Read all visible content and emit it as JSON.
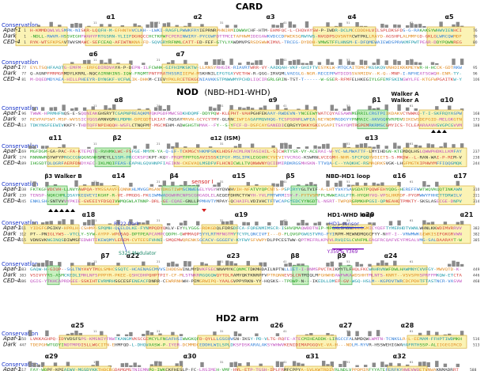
{
  "sections": {
    "card": "CARD",
    "nod": "NOD",
    "nod_sub": "(NBD-HD1-WHD)",
    "hd2": "HD2 arm"
  },
  "row_labels": {
    "conservation": "Conservation",
    "seqs": [
      "Apaf-1",
      "Dark",
      "CED-4"
    ]
  },
  "blocks": [
    {
      "id": "b1",
      "section": "card",
      "nseq": 3,
      "helices": [
        "α1",
        "α2",
        "α3",
        "α4",
        "α5"
      ],
      "start": [
        "1",
        "1",
        "1"
      ],
      "end": [
        "76",
        "76",
        "80"
      ]
    },
    {
      "id": "b2",
      "section": "card",
      "nseq": 3,
      "helices": [
        "α6",
        "α7"
      ],
      "start": [
        "77",
        "77",
        "81"
      ],
      "end": [
        "95",
        "96",
        "106"
      ]
    },
    {
      "id": "b3",
      "section": "nod",
      "nseq": 3,
      "helices": [
        "α8",
        "α9",
        "β1",
        "Walker A",
        "α10"
      ],
      "start": [
        "96",
        "97",
        "113"
      ],
      "end": [
        "168",
        "173",
        "188"
      ]
    },
    {
      "id": "b4",
      "section": "nod",
      "nseq": 3,
      "helices": [
        "α11",
        "β2",
        "α12 (ISM)",
        "α13"
      ],
      "start": [
        "169",
        "174",
        "189"
      ],
      "end": [
        "237",
        "238",
        "244"
      ]
    },
    {
      "id": "b5",
      "section": "nod",
      "nseq": 3,
      "helices": [
        "β3 Walker B",
        "α14",
        "β4",
        "α15",
        "β5",
        "NBD-HD1 loop",
        "α16",
        "α17"
      ],
      "start": [
        "238",
        "239",
        "245"
      ],
      "end": [
        "310",
        "311",
        "314"
      ]
    },
    {
      "id": "b6",
      "section": "nod",
      "nseq": 3,
      "helices": [
        "α18",
        "α19",
        "HD1-WHD loop",
        "α20",
        "α21"
      ],
      "start": [
        "311",
        "312",
        "315"
      ],
      "end": [
        "382",
        "382",
        "385"
      ]
    },
    {
      "id": "b7",
      "section": "nod",
      "nseq": 3,
      "helices": [
        "β7",
        "α22",
        "α23",
        "β8",
        "β9",
        "α24"
      ],
      "start": [
        "383",
        "383",
        "386"
      ],
      "end": [
        "449",
        "446",
        "468"
      ]
    },
    {
      "id": "b8",
      "section": "hd2",
      "nseq": 2,
      "helices": [
        "α25",
        "α26",
        "α27",
        "α28"
      ],
      "start": [
        "450",
        "447"
      ],
      "end": [
        "516",
        "513"
      ]
    },
    {
      "id": "b9",
      "section": "hd2",
      "nseq": 2,
      "helices": [
        "α29",
        "α30",
        "α31",
        "α32"
      ],
      "start": [
        "517",
        "514"
      ],
      "end": [
        "588",
        "583"
      ]
    }
  ],
  "annotations": {
    "sensor1": "sensor I",
    "r322": "R322-Dark",
    "s325": "S325 Modulator",
    "hd1sensor": "HD1-sensor",
    "y359": "Y359 & Y369"
  },
  "colors": {
    "helix_box": "#fbf3b5",
    "helix_border": "#d4ae3c",
    "strand_box": "#c8f0c0",
    "strand_border": "#4caf50",
    "bar": "#8a8a8a",
    "conservation_label": "#1a35c9",
    "annotation_red": "#d42020",
    "annotation_blue": "#2f3bd0",
    "annotation_purple": "#8b1bbd",
    "annotation_teal": "#1d8a6a"
  }
}
